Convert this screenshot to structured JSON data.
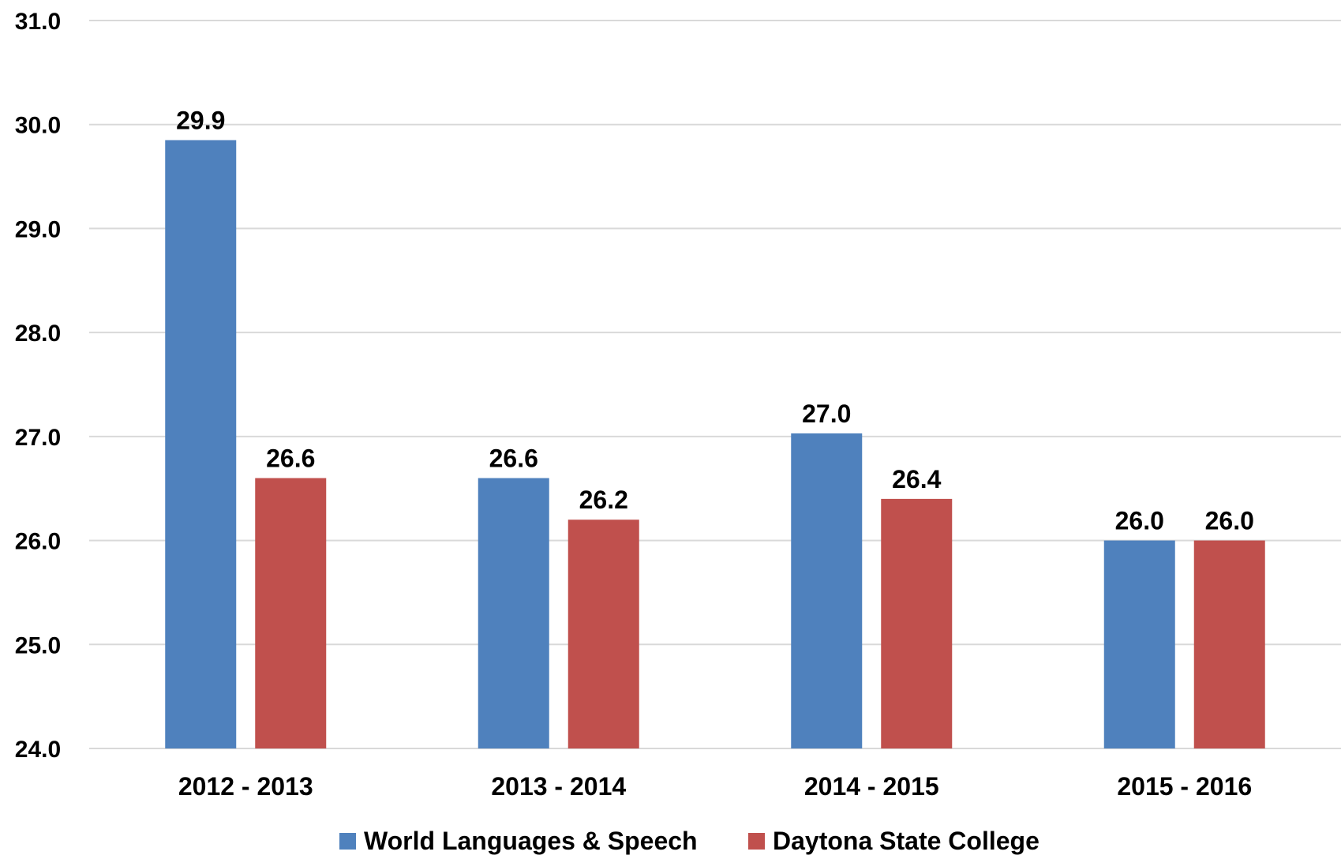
{
  "chart_data": {
    "type": "bar",
    "title": "",
    "xlabel": "",
    "ylabel": "",
    "categories": [
      "2012 - 2013",
      "2013 - 2014",
      "2014 - 2015",
      "2015 - 2016"
    ],
    "series": [
      {
        "name": "World Languages & Speech",
        "color": "#4F81BD",
        "values": [
          29.85,
          26.6,
          27.03,
          26.0
        ],
        "labels": [
          "29.9",
          "26.6",
          "27.0",
          "26.0"
        ]
      },
      {
        "name": "Daytona State College",
        "color": "#C0504D",
        "values": [
          26.6,
          26.2,
          26.4,
          26.0
        ],
        "labels": [
          "26.6",
          "26.2",
          "26.4",
          "26.0"
        ]
      }
    ],
    "ylim": [
      24.0,
      31.0
    ],
    "yticks": [
      "24.0",
      "25.0",
      "26.0",
      "27.0",
      "28.0",
      "29.0",
      "30.0",
      "31.0"
    ],
    "grid": true,
    "gridColor": "#D9D9D9",
    "legend": "bottom"
  }
}
